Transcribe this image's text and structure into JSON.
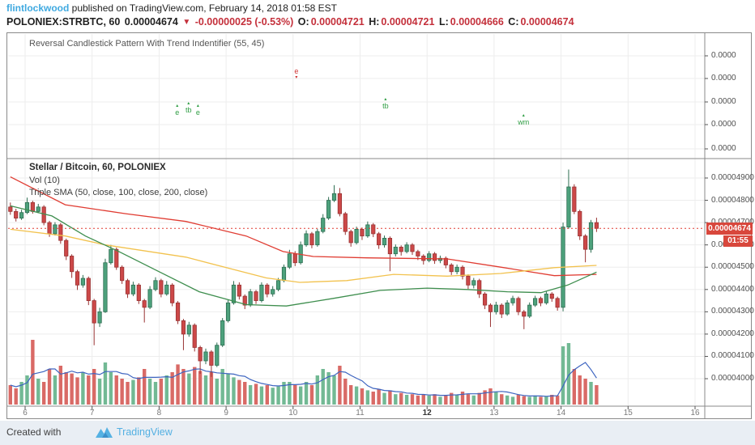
{
  "header": {
    "username": "flintlockwood",
    "published": " published on TradingView.com, February 14, 2018 01:58 EST",
    "symbol": "POLONIEX:STRBTC, 60",
    "last_price": "0.00004674",
    "change_arrow": "▼",
    "change": "-0.00000025 (-0.53%)",
    "o_label": "O:",
    "o_value": "0.00004721",
    "h_label": "H:",
    "h_value": "0.00004721",
    "l_label": "L:",
    "l_value": "0.00004666",
    "c_label": "C:",
    "c_value": "0.00004674"
  },
  "upper_panel": {
    "title": "Reversal Candlestick Pattern With Trend Indentifier (55, 45)",
    "axis": [
      {
        "label": "0.0000",
        "y": 28
      },
      {
        "label": "0.0000",
        "y": 56
      },
      {
        "label": "0.0000",
        "y": 85
      },
      {
        "label": "0.0000",
        "y": 113
      },
      {
        "label": "0.0000",
        "y": 143
      }
    ],
    "markers": [
      {
        "text": "e",
        "day": 8.27,
        "y": 97,
        "color": "#2f9e44",
        "dir": "up"
      },
      {
        "text": "tb",
        "day": 8.44,
        "y": 94,
        "color": "#2f9e44",
        "dir": "up"
      },
      {
        "text": "e",
        "day": 8.58,
        "y": 97,
        "color": "#2f9e44",
        "dir": "up"
      },
      {
        "text": "e",
        "day": 10.05,
        "y": 52,
        "color": "#cf3535",
        "dir": "down"
      },
      {
        "text": "tb",
        "day": 11.38,
        "y": 89,
        "color": "#2f9e44",
        "dir": "up"
      },
      {
        "text": "wm",
        "day": 13.44,
        "y": 109,
        "color": "#2f9e44",
        "dir": "up"
      }
    ]
  },
  "main_panel": {
    "legend_line1": "Stellar / Bitcoin, 60, POLONIEX",
    "legend_line2": "Vol (10)",
    "legend_line3": "Triple SMA (50, close, 100, close, 200, close)",
    "price_axis": [
      {
        "label": "0.00004900",
        "price": 4900
      },
      {
        "label": "0.00004800",
        "price": 4800
      },
      {
        "label": "0.00004700",
        "price": 4700
      },
      {
        "label": "0.00004600",
        "price": 4600
      },
      {
        "label": "0.00004500",
        "price": 4500
      },
      {
        "label": "0.00004400",
        "price": 4400
      },
      {
        "label": "0.00004300",
        "price": 4300
      },
      {
        "label": "0.00004200",
        "price": 4200
      },
      {
        "label": "0.00004100",
        "price": 4100
      },
      {
        "label": "0.00004000",
        "price": 4000
      }
    ],
    "price_tag": {
      "label": "0.00004674",
      "price": 4674,
      "countdown": "01:55"
    }
  },
  "time_axis": {
    "labels": [
      {
        "text": "6",
        "day": 6
      },
      {
        "text": "7",
        "day": 7
      },
      {
        "text": "8",
        "day": 8
      },
      {
        "text": "9",
        "day": 9
      },
      {
        "text": "10",
        "day": 10
      },
      {
        "text": "11",
        "day": 11
      },
      {
        "text": "12",
        "day": 12,
        "bold": true
      },
      {
        "text": "13",
        "day": 13
      },
      {
        "text": "14",
        "day": 14
      },
      {
        "text": "15",
        "day": 15
      },
      {
        "text": "16",
        "day": 16
      }
    ]
  },
  "footer": {
    "created_with": "Created with",
    "brand": "TradingView"
  },
  "colors": {
    "up": "#4da17c",
    "up_border": "#2e6e52",
    "down": "#cc4848",
    "down_border": "#993333",
    "vol_up": "#72b994",
    "vol_down": "#d96a66",
    "vol_ma": "#3d64c0",
    "sma_red": "#e03c32",
    "sma_yellow": "#f2c24e",
    "sma_green": "#3e8e4e",
    "current_price_line": "#e03c32",
    "tag_bg": "#d8473c",
    "grid": "#ededed",
    "panel_border": "#8a8a8a",
    "brand_blue": "#54b0e2",
    "header_red": "#c4303b"
  },
  "chart_data": {
    "type": "candlestick+volume",
    "title": "Stellar / Bitcoin, 60, POLONIEX",
    "price_unit": "BTC x 1e-8 (4674 = 0.00004674)",
    "ylim": [
      4000,
      4950
    ],
    "time_axis_days": [
      6,
      7,
      8,
      9,
      10,
      11,
      12,
      13,
      14,
      15,
      16
    ],
    "x_note": "February 2018, day-of-month axis; bars every 2h (estimated from 60-min chart)",
    "start_day": 5.78,
    "day_step": 0.08333,
    "open_first": 4770,
    "candles": [
      [
        4790,
        4735,
        4750
      ],
      [
        4762,
        4705,
        4720
      ],
      [
        4758,
        4712,
        4745
      ],
      [
        4812,
        4738,
        4790
      ],
      [
        4798,
        4740,
        4750
      ],
      [
        4784,
        4742,
        4770
      ],
      [
        4778,
        4688,
        4700
      ],
      [
        4708,
        4636,
        4650
      ],
      [
        4702,
        4642,
        4690
      ],
      [
        4698,
        4605,
        4620
      ],
      [
        4628,
        4532,
        4550
      ],
      [
        4558,
        4452,
        4480
      ],
      [
        4488,
        4398,
        4420
      ],
      [
        4465,
        4408,
        4450
      ],
      [
        4458,
        4330,
        4350
      ],
      [
        4358,
        4150,
        4250
      ],
      [
        4318,
        4232,
        4300
      ],
      [
        4538,
        4295,
        4520
      ],
      [
        4600,
        4512,
        4580
      ],
      [
        4588,
        4488,
        4500
      ],
      [
        4508,
        4425,
        4440
      ],
      [
        4448,
        4362,
        4380
      ],
      [
        4435,
        4370,
        4420
      ],
      [
        4428,
        4335,
        4350
      ],
      [
        4358,
        4252,
        4320
      ],
      [
        4415,
        4312,
        4400
      ],
      [
        4455,
        4392,
        4440
      ],
      [
        4448,
        4365,
        4380
      ],
      [
        4438,
        4372,
        4420
      ],
      [
        4428,
        4325,
        4340
      ],
      [
        4348,
        4245,
        4260
      ],
      [
        4268,
        4128,
        4200
      ],
      [
        4255,
        4188,
        4240
      ],
      [
        4248,
        4122,
        4140
      ],
      [
        4148,
        4022,
        4080
      ],
      [
        4135,
        4065,
        4120
      ],
      [
        4128,
        4008,
        4060
      ],
      [
        4162,
        4052,
        4150
      ],
      [
        4272,
        4142,
        4260
      ],
      [
        4355,
        4252,
        4340
      ],
      [
        4438,
        4332,
        4420
      ],
      [
        4432,
        4355,
        4370
      ],
      [
        4378,
        4312,
        4330
      ],
      [
        4402,
        4322,
        4390
      ],
      [
        4398,
        4335,
        4350
      ],
      [
        4432,
        4342,
        4420
      ],
      [
        4428,
        4365,
        4380
      ],
      [
        4415,
        4368,
        4400
      ],
      [
        4452,
        4392,
        4440
      ],
      [
        4512,
        4432,
        4500
      ],
      [
        4578,
        4492,
        4560
      ],
      [
        4572,
        4505,
        4520
      ],
      [
        4615,
        4512,
        4600
      ],
      [
        4665,
        4592,
        4650
      ],
      [
        4658,
        4585,
        4600
      ],
      [
        4672,
        4592,
        4660
      ],
      [
        4738,
        4652,
        4720
      ],
      [
        4815,
        4712,
        4800
      ],
      [
        4868,
        4792,
        4830
      ],
      [
        4855,
        4728,
        4740
      ],
      [
        4748,
        4645,
        4660
      ],
      [
        4668,
        4592,
        4610
      ],
      [
        4682,
        4602,
        4670
      ],
      [
        4678,
        4622,
        4640
      ],
      [
        4705,
        4632,
        4690
      ],
      [
        4698,
        4635,
        4650
      ],
      [
        4658,
        4582,
        4600
      ],
      [
        4642,
        4588,
        4630
      ],
      [
        4638,
        4482,
        4560
      ],
      [
        4602,
        4548,
        4590
      ],
      [
        4598,
        4552,
        4570
      ],
      [
        4612,
        4562,
        4600
      ],
      [
        4608,
        4555,
        4570
      ],
      [
        4578,
        4532,
        4550
      ],
      [
        4558,
        4512,
        4530
      ],
      [
        4572,
        4522,
        4560
      ],
      [
        4568,
        4515,
        4530
      ],
      [
        4552,
        4518,
        4540
      ],
      [
        4548,
        4495,
        4510
      ],
      [
        4518,
        4465,
        4480
      ],
      [
        4512,
        4468,
        4500
      ],
      [
        4508,
        4445,
        4460
      ],
      [
        4468,
        4402,
        4420
      ],
      [
        4452,
        4405,
        4440
      ],
      [
        4448,
        4362,
        4380
      ],
      [
        4388,
        4312,
        4330
      ],
      [
        4338,
        4232,
        4300
      ],
      [
        4345,
        4288,
        4330
      ],
      [
        4338,
        4272,
        4290
      ],
      [
        4352,
        4282,
        4340
      ],
      [
        4372,
        4328,
        4360
      ],
      [
        4368,
        4285,
        4300
      ],
      [
        4308,
        4222,
        4280
      ],
      [
        4342,
        4272,
        4330
      ],
      [
        4372,
        4322,
        4360
      ],
      [
        4368,
        4325,
        4340
      ],
      [
        4392,
        4332,
        4380
      ],
      [
        4388,
        4345,
        4360
      ],
      [
        4368,
        4305,
        4320
      ],
      [
        4700,
        4302,
        4680
      ],
      [
        4938,
        4672,
        4860
      ],
      [
        4872,
        4738,
        4750
      ],
      [
        4758,
        4622,
        4640
      ],
      [
        4648,
        4522,
        4580
      ],
      [
        4712,
        4565,
        4700
      ],
      [
        4722,
        4658,
        4674
      ]
    ],
    "volumes": [
      30,
      25,
      35,
      45,
      100,
      40,
      35,
      55,
      45,
      60,
      50,
      48,
      42,
      50,
      45,
      55,
      40,
      65,
      50,
      45,
      40,
      35,
      38,
      42,
      55,
      40,
      35,
      40,
      45,
      50,
      62,
      55,
      48,
      58,
      52,
      45,
      50,
      40,
      55,
      48,
      42,
      38,
      35,
      30,
      32,
      28,
      30,
      26,
      28,
      35,
      35,
      30,
      28,
      35,
      30,
      45,
      55,
      50,
      45,
      60,
      40,
      30,
      28,
      25,
      22,
      20,
      24,
      18,
      22,
      16,
      18,
      15,
      16,
      14,
      15,
      14,
      16,
      12,
      14,
      18,
      15,
      20,
      16,
      14,
      18,
      22,
      25,
      20,
      16,
      14,
      12,
      15,
      13,
      12,
      14,
      12,
      13,
      15,
      14,
      90,
      95,
      55,
      45,
      40,
      35,
      30
    ],
    "sma": {
      "sma200_red": [
        [
          5.78,
          4905
        ],
        [
          6.6,
          4780
        ],
        [
          7.5,
          4740
        ],
        [
          8.4,
          4705
        ],
        [
          9.3,
          4640
        ],
        [
          9.85,
          4570
        ],
        [
          10.3,
          4548
        ],
        [
          11.1,
          4542
        ],
        [
          12.3,
          4537
        ],
        [
          13.1,
          4500
        ],
        [
          13.9,
          4462
        ],
        [
          14.53,
          4468
        ]
      ],
      "sma100_yellow": [
        [
          5.78,
          4670
        ],
        [
          6.6,
          4640
        ],
        [
          7.2,
          4600
        ],
        [
          8.4,
          4545
        ],
        [
          9.6,
          4452
        ],
        [
          10.1,
          4432
        ],
        [
          10.8,
          4440
        ],
        [
          11.5,
          4468
        ],
        [
          12.3,
          4460
        ],
        [
          13.1,
          4472
        ],
        [
          13.9,
          4498
        ],
        [
          14.53,
          4508
        ]
      ],
      "sma50_green": [
        [
          5.78,
          4775
        ],
        [
          6.4,
          4730
        ],
        [
          6.9,
          4640
        ],
        [
          7.4,
          4570
        ],
        [
          8.0,
          4480
        ],
        [
          8.6,
          4390
        ],
        [
          9.3,
          4332
        ],
        [
          9.9,
          4326
        ],
        [
          10.6,
          4360
        ],
        [
          11.3,
          4396
        ],
        [
          12.0,
          4406
        ],
        [
          12.6,
          4400
        ],
        [
          13.2,
          4390
        ],
        [
          13.7,
          4386
        ],
        [
          14.1,
          4420
        ],
        [
          14.53,
          4478
        ]
      ]
    },
    "last_price": 4674
  }
}
